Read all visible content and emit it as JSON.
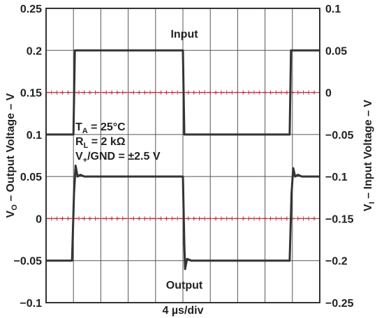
{
  "chart_data": {
    "type": "line",
    "xlabel": "4 µs/div",
    "x_divisions": 10,
    "ylabel_left": {
      "text": "V",
      "sub": "O",
      "rest": " – Output Voltage – V"
    },
    "ylabel_right": {
      "text": "V",
      "sub": "I",
      "rest": " – Input Voltage – V"
    },
    "left_axis": {
      "ylim": [
        -0.1,
        0.25
      ],
      "ticks": [
        "0.25",
        "0.2",
        "0.15",
        "0.1",
        "0.05",
        "0",
        "−0.05",
        "−0.1"
      ]
    },
    "right_axis": {
      "ylim": [
        -0.25,
        0.1
      ],
      "ticks": [
        "0.1",
        "0.05",
        "0",
        "−0.05",
        "−0.1",
        "−0.15",
        "−0.2",
        "−0.25"
      ]
    },
    "reference_lines": [
      {
        "axis": "left",
        "y": 0.15,
        "color": "#d2283c",
        "style": "dashed"
      },
      {
        "axis": "left",
        "y": 0.0,
        "color": "#d2283c",
        "style": "dashed"
      }
    ],
    "grid": true,
    "series": [
      {
        "name": "Input",
        "axis": "right",
        "color": "#333333",
        "x": [
          0,
          1.0,
          1.05,
          5.0,
          5.05,
          8.9,
          8.95,
          10
        ],
        "y": [
          -0.05,
          -0.05,
          0.05,
          0.05,
          -0.05,
          -0.05,
          0.05,
          0.05
        ]
      },
      {
        "name": "Output",
        "axis": "left",
        "color": "#333333",
        "x": [
          0,
          0.95,
          1.02,
          1.08,
          1.15,
          1.25,
          1.4,
          5.0,
          5.05,
          5.08,
          5.15,
          5.3,
          8.9,
          8.97,
          9.03,
          9.1,
          9.2,
          9.35,
          10
        ],
        "y": [
          -0.05,
          -0.05,
          0.03,
          0.063,
          0.05,
          0.052,
          0.05,
          0.05,
          -0.03,
          -0.06,
          -0.048,
          -0.05,
          -0.05,
          0.03,
          0.06,
          0.05,
          0.052,
          0.05,
          0.05
        ]
      }
    ],
    "annotations": {
      "input_label": "Input",
      "output_label": "Output",
      "ta": {
        "text": "T",
        "sub": "A",
        "rest": " = 25°C"
      },
      "rl": {
        "text": "R",
        "sub": "L",
        "rest": " = 2 kΩ"
      },
      "vsupply": {
        "text": "V",
        "sub": "+",
        "rest": "/GND = ±2.5 V"
      }
    }
  }
}
